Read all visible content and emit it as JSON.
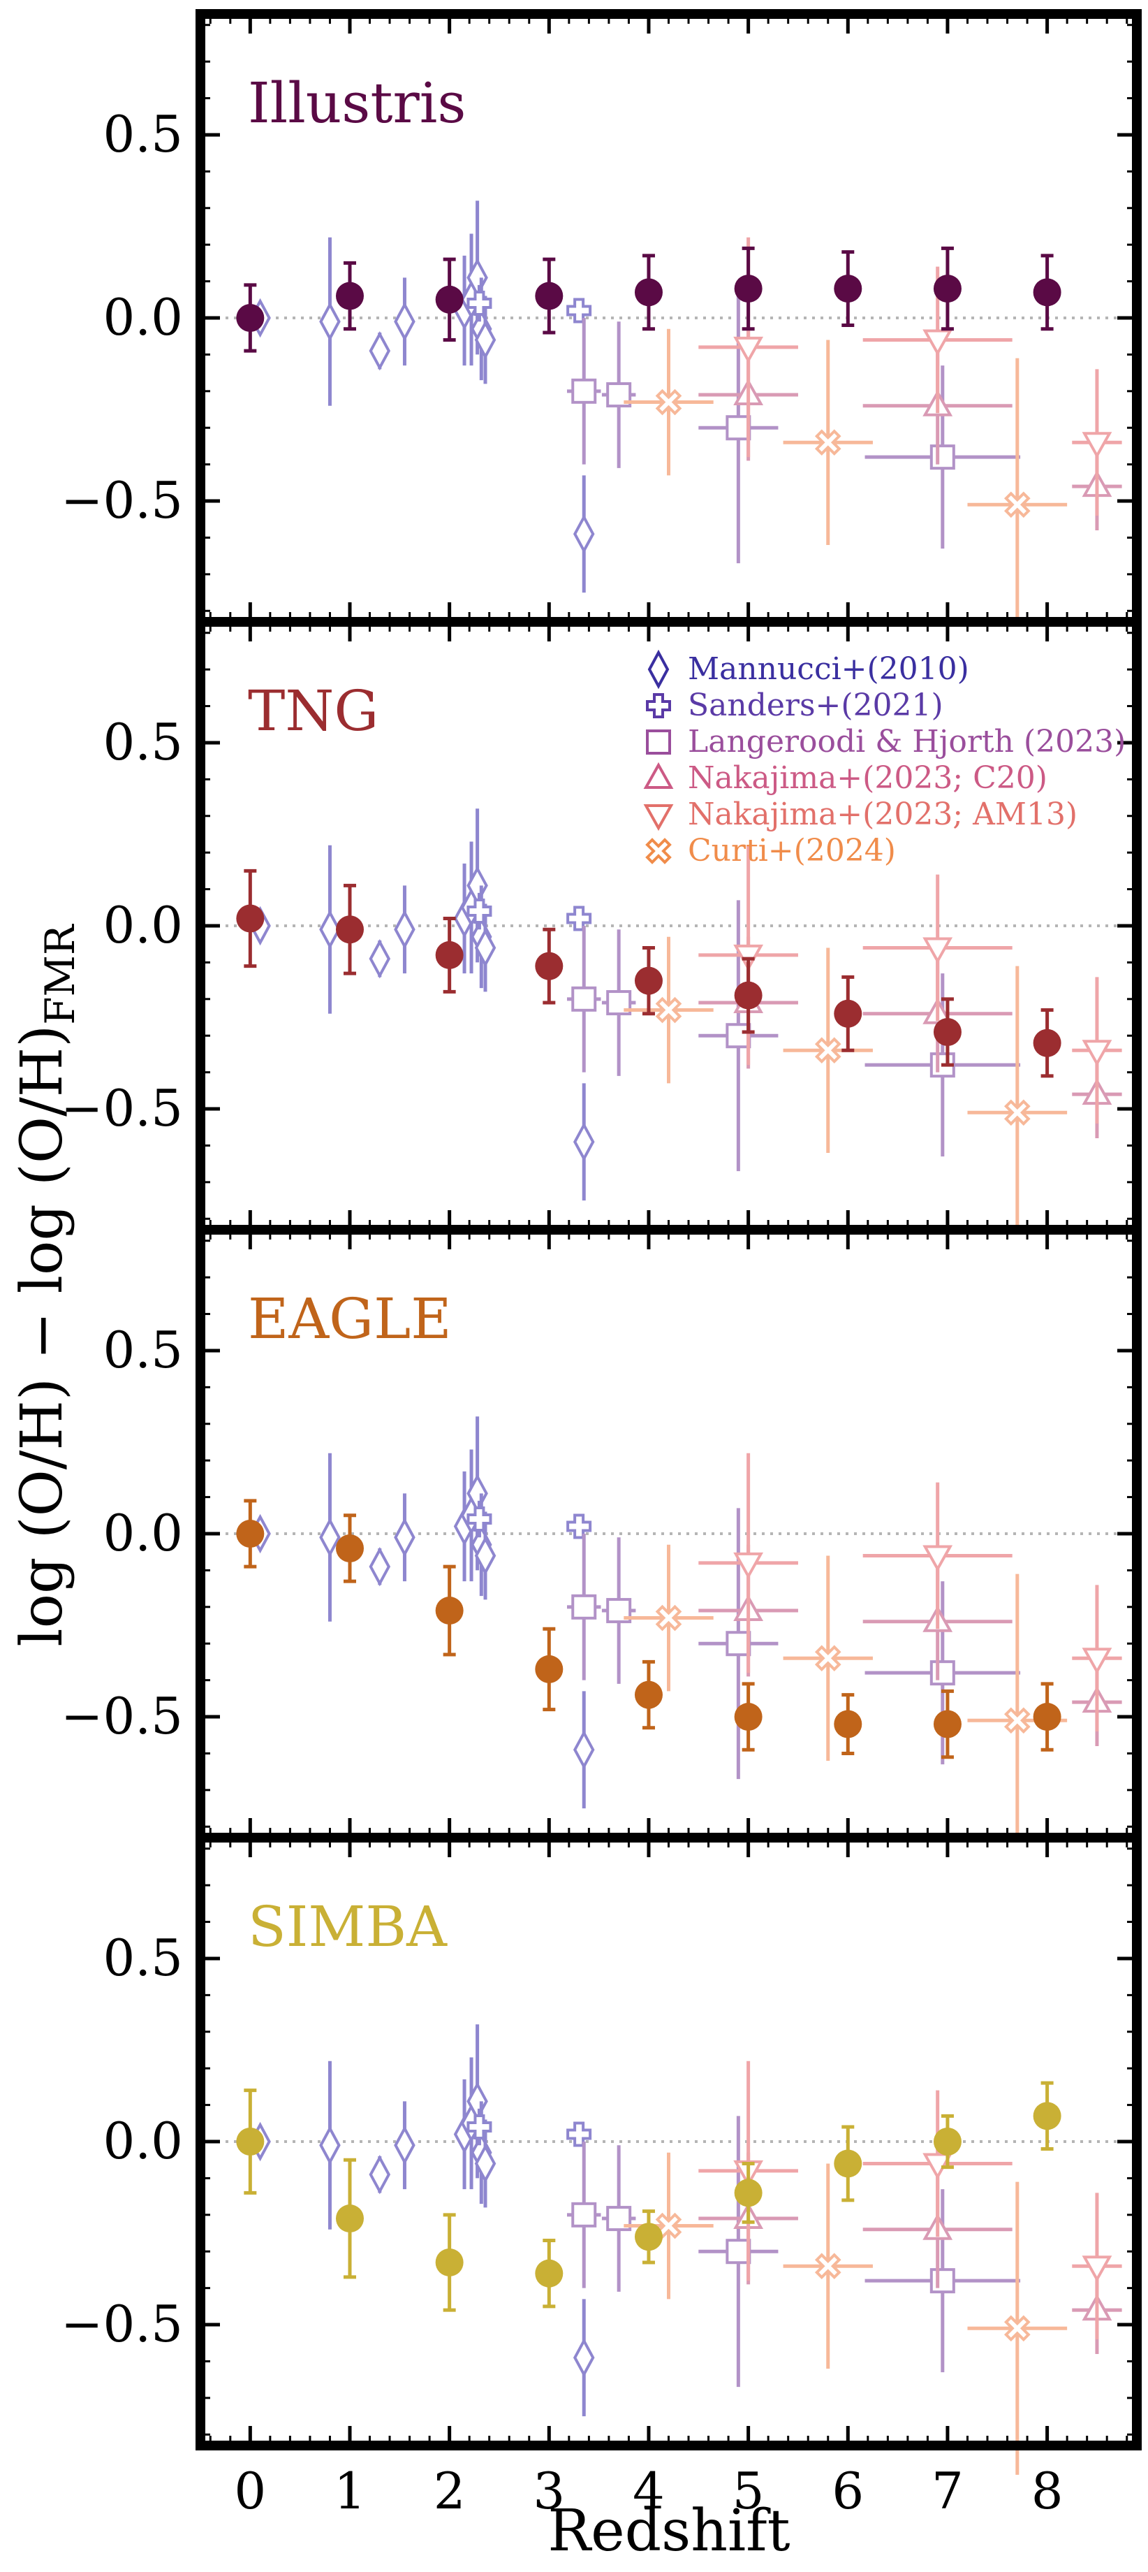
{
  "chart_data": {
    "type": "scatter",
    "xlabel": "Redshift",
    "ylabel": "log (O/H) − log (O/H)",
    "ylabel_sub": "FMR",
    "xlim": [
      -0.5,
      8.9
    ],
    "ylim": [
      -0.83,
      0.83
    ],
    "x_ticks": [
      0,
      1,
      2,
      3,
      4,
      5,
      6,
      7,
      8
    ],
    "x_tick_labels": [
      "0",
      "1",
      "2",
      "3",
      "4",
      "5",
      "6",
      "7",
      "8"
    ],
    "y_ticks": [
      0.5,
      0.0,
      -0.5
    ],
    "y_tick_labels": [
      "0.5",
      "0.0",
      "−0.5"
    ],
    "reference_line": 0.0,
    "legend": [
      {
        "label": "Mannucci+(2010)",
        "marker": "diamond",
        "color": "#3a2fa0"
      },
      {
        "label": "Sanders+(2021)",
        "marker": "plus",
        "color": "#5a3aa6"
      },
      {
        "label": "Langeroodi & Hjorth (2023)",
        "marker": "square",
        "color": "#9a4e9c"
      },
      {
        "label": "Nakajima+(2023; C20)",
        "marker": "triangle-up",
        "color": "#cc5a85"
      },
      {
        "label": "Nakajima+(2023; AM13)",
        "marker": "triangle-down",
        "color": "#e2706a"
      },
      {
        "label": "Curti+(2024)",
        "marker": "x",
        "color": "#f08c4a"
      }
    ],
    "observations": [
      {
        "name": "Mannucci+(2010)",
        "marker": "diamond",
        "color": "#8e86cf",
        "points": [
          {
            "x": 0.1,
            "y": 0.0,
            "xerr": 0,
            "yerr": 0.02
          },
          {
            "x": 0.8,
            "y": -0.01,
            "xerr": 0,
            "yerr": 0.23
          },
          {
            "x": 1.3,
            "y": -0.09,
            "xerr": 0,
            "yerr": 0.05
          },
          {
            "x": 1.55,
            "y": -0.01,
            "xerr": 0,
            "yerr": 0.12
          },
          {
            "x": 2.15,
            "y": 0.02,
            "xerr": 0,
            "yerr": 0.15
          },
          {
            "x": 2.22,
            "y": 0.05,
            "xerr": 0,
            "yerr": 0.18
          },
          {
            "x": 2.28,
            "y": 0.11,
            "xerr": 0,
            "yerr": 0.21
          },
          {
            "x": 2.32,
            "y": -0.03,
            "xerr": 0,
            "yerr": 0.14
          },
          {
            "x": 2.36,
            "y": -0.06,
            "xerr": 0,
            "yerr": 0.12
          },
          {
            "x": 3.35,
            "y": -0.59,
            "xerr": 0,
            "yerr": 0.16
          }
        ]
      },
      {
        "name": "Sanders+(2021)",
        "marker": "plus",
        "color": "#8e86cf",
        "points": [
          {
            "x": 2.3,
            "y": 0.04,
            "xerr": 0.07,
            "yerr": 0.05
          },
          {
            "x": 3.3,
            "y": 0.02,
            "xerr": 0.08,
            "yerr": 0.02
          }
        ]
      },
      {
        "name": "Langeroodi & Hjorth (2023)",
        "marker": "square",
        "color": "#b292c7",
        "points": [
          {
            "x": 3.35,
            "y": -0.2,
            "xerr": 0.17,
            "yerr": 0.2
          },
          {
            "x": 3.7,
            "y": -0.21,
            "xerr": 0.17,
            "yerr": 0.2
          },
          {
            "x": 4.9,
            "y": -0.3,
            "xerr": 0.4,
            "yerr": 0.37
          },
          {
            "x": 6.95,
            "y": -0.38,
            "xerr": 0.78,
            "yerr": 0.25
          }
        ]
      },
      {
        "name": "Nakajima+(2023; C20)",
        "marker": "triangle-up",
        "color": "#d99ab4",
        "points": [
          {
            "x": 5.0,
            "y": -0.21,
            "xerr": 0.5,
            "yerr": 0.18
          },
          {
            "x": 6.9,
            "y": -0.24,
            "xerr": 0.75,
            "yerr": 0.16
          },
          {
            "x": 8.5,
            "y": -0.46,
            "xerr": 0.25,
            "yerr": 0.12
          }
        ]
      },
      {
        "name": "Nakajima+(2023; AM13)",
        "marker": "triangle-down",
        "color": "#efa5a8",
        "points": [
          {
            "x": 5.0,
            "y": -0.08,
            "xerr": 0.5,
            "yerr": 0.3
          },
          {
            "x": 6.9,
            "y": -0.06,
            "xerr": 0.75,
            "yerr": 0.2
          },
          {
            "x": 8.5,
            "y": -0.34,
            "xerr": 0.25,
            "yerr": 0.2
          }
        ]
      },
      {
        "name": "Curti+(2024)",
        "marker": "x",
        "color": "#f7b899",
        "points": [
          {
            "x": 4.2,
            "y": -0.23,
            "xerr": 0.45,
            "yerr": 0.2
          },
          {
            "x": 5.8,
            "y": -0.34,
            "xerr": 0.45,
            "yerr": 0.28
          },
          {
            "x": 7.7,
            "y": -0.51,
            "xerr": 0.5,
            "yerr": 0.4
          }
        ]
      }
    ],
    "panels": [
      {
        "title": "Illustris",
        "color": "#5a0a45",
        "points": [
          {
            "x": 0,
            "y": 0.0,
            "yerr": 0.09
          },
          {
            "x": 1,
            "y": 0.06,
            "yerr": 0.09
          },
          {
            "x": 2,
            "y": 0.05,
            "yerr": 0.11
          },
          {
            "x": 3,
            "y": 0.06,
            "yerr": 0.1
          },
          {
            "x": 4,
            "y": 0.07,
            "yerr": 0.1
          },
          {
            "x": 5,
            "y": 0.08,
            "yerr": 0.11
          },
          {
            "x": 6,
            "y": 0.08,
            "yerr": 0.1
          },
          {
            "x": 7,
            "y": 0.08,
            "yerr": 0.11
          },
          {
            "x": 8,
            "y": 0.07,
            "yerr": 0.1
          }
        ]
      },
      {
        "title": "TNG",
        "color": "#9b2d30",
        "points": [
          {
            "x": 0,
            "y": 0.02,
            "yerr": 0.13
          },
          {
            "x": 1,
            "y": -0.01,
            "yerr": 0.12
          },
          {
            "x": 2,
            "y": -0.08,
            "yerr": 0.1
          },
          {
            "x": 3,
            "y": -0.11,
            "yerr": 0.1
          },
          {
            "x": 4,
            "y": -0.15,
            "yerr": 0.09
          },
          {
            "x": 5,
            "y": -0.19,
            "yerr": 0.1
          },
          {
            "x": 6,
            "y": -0.24,
            "yerr": 0.1
          },
          {
            "x": 7,
            "y": -0.29,
            "yerr": 0.09
          },
          {
            "x": 8,
            "y": -0.32,
            "yerr": 0.09
          }
        ]
      },
      {
        "title": "EAGLE",
        "color": "#c0641a",
        "points": [
          {
            "x": 0,
            "y": 0.0,
            "yerr": 0.09
          },
          {
            "x": 1,
            "y": -0.04,
            "yerr": 0.09
          },
          {
            "x": 2,
            "y": -0.21,
            "yerr": 0.12
          },
          {
            "x": 3,
            "y": -0.37,
            "yerr": 0.11
          },
          {
            "x": 4,
            "y": -0.44,
            "yerr": 0.09
          },
          {
            "x": 5,
            "y": -0.5,
            "yerr": 0.09
          },
          {
            "x": 6,
            "y": -0.52,
            "yerr": 0.08
          },
          {
            "x": 7,
            "y": -0.52,
            "yerr": 0.09
          },
          {
            "x": 8,
            "y": -0.5,
            "yerr": 0.09
          }
        ]
      },
      {
        "title": "SIMBA",
        "color": "#c9b035",
        "points": [
          {
            "x": 0,
            "y": 0.0,
            "yerr": 0.14
          },
          {
            "x": 1,
            "y": -0.21,
            "yerr": 0.16
          },
          {
            "x": 2,
            "y": -0.33,
            "yerr": 0.13
          },
          {
            "x": 3,
            "y": -0.36,
            "yerr": 0.09
          },
          {
            "x": 4,
            "y": -0.26,
            "yerr": 0.07
          },
          {
            "x": 5,
            "y": -0.14,
            "yerr": 0.08
          },
          {
            "x": 6,
            "y": -0.06,
            "yerr": 0.1
          },
          {
            "x": 7,
            "y": 0.0,
            "yerr": 0.07
          },
          {
            "x": 8,
            "y": 0.07,
            "yerr": 0.09
          }
        ]
      }
    ]
  }
}
